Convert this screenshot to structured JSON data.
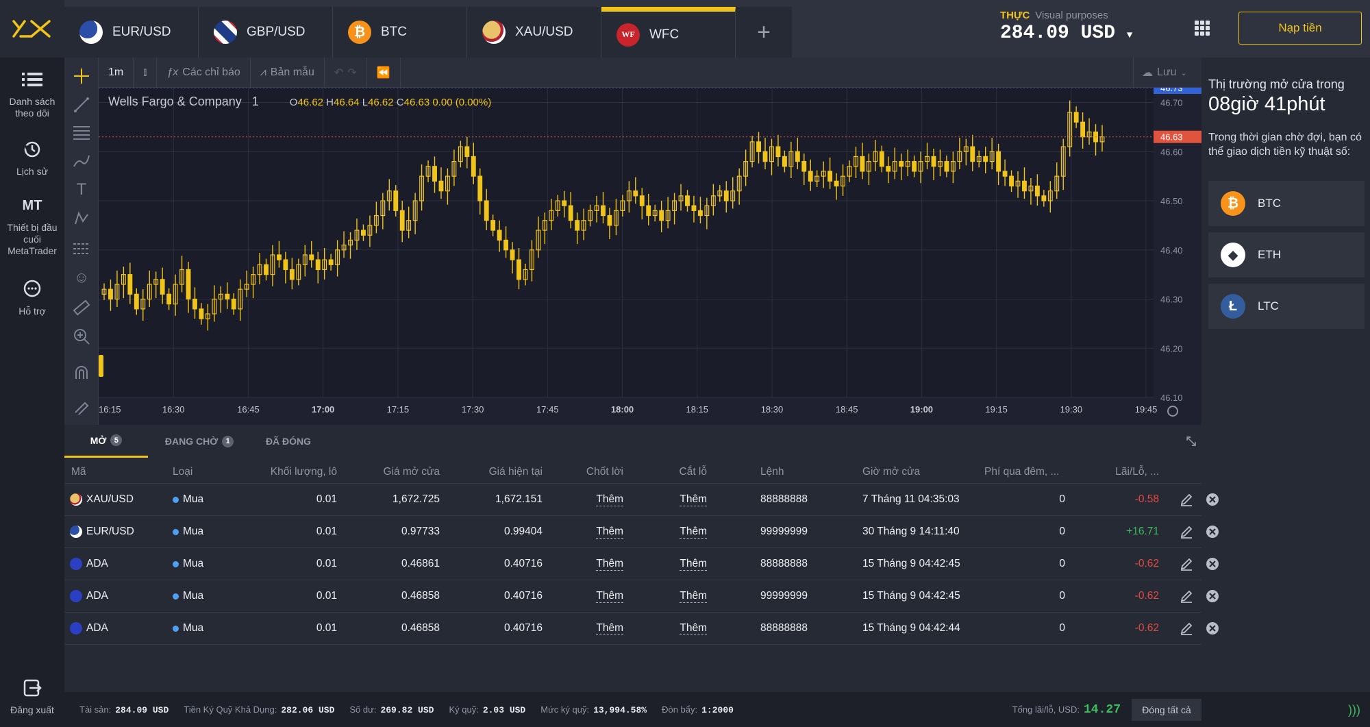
{
  "tabs": [
    {
      "label": "EUR/USD",
      "icon": "eu-us-flag"
    },
    {
      "label": "GBP/USD",
      "icon": "uk-us-flag"
    },
    {
      "label": "BTC",
      "icon": "bitcoin-icon"
    },
    {
      "label": "XAU/USD",
      "icon": "gold-us-flag"
    },
    {
      "label": "WFC",
      "icon": "wf-logo",
      "active": true
    }
  ],
  "account": {
    "mode": "THỰC",
    "mode_note": "Visual purposes",
    "balance": "284.09 USD"
  },
  "deposit_label": "Nạp tiền",
  "nav": [
    {
      "label": "Danh sách theo dõi",
      "icon": "list-icon"
    },
    {
      "label": "Lịch sử",
      "icon": "history-icon"
    },
    {
      "label": "Thiết bị đầu cuối MetaTrader",
      "icon": "mt-icon",
      "icon_text": "MT"
    },
    {
      "label": "Hỗ trợ",
      "icon": "chat-icon"
    },
    {
      "label": "Đăng xuất",
      "icon": "logout-icon"
    }
  ],
  "chart_toolbar": {
    "interval": "1m",
    "indicators": "Các chỉ báo",
    "templates": "Bản mẫu",
    "save": "Lưu"
  },
  "chart_legend": {
    "name": "Wells Fargo & Company",
    "interval": "1",
    "o": "46.62",
    "h": "46.64",
    "l": "46.62",
    "c": "46.63",
    "change": "0.00 (0.00%)"
  },
  "chart_data": {
    "type": "candlestick",
    "y_ticks": [
      "46.70",
      "46.60",
      "46.50",
      "46.40",
      "46.30",
      "46.20",
      "46.10"
    ],
    "ylim": [
      46.1,
      46.73
    ],
    "x_ticks": [
      "16:15",
      "16:30",
      "16:45",
      "17:00",
      "17:15",
      "17:30",
      "17:45",
      "18:00",
      "18:15",
      "18:30",
      "18:45",
      "19:00",
      "19:15",
      "19:30",
      "19:45"
    ],
    "last_high_label": "46.73",
    "last_price_label": "46.63",
    "color": "#f0c419",
    "close_series": [
      46.32,
      46.3,
      46.33,
      46.35,
      46.31,
      46.28,
      46.3,
      46.33,
      46.34,
      46.31,
      46.29,
      46.33,
      46.36,
      46.3,
      46.28,
      46.26,
      46.27,
      46.3,
      46.31,
      46.3,
      46.28,
      46.32,
      46.33,
      46.35,
      46.37,
      46.35,
      46.39,
      46.38,
      46.36,
      46.34,
      46.37,
      46.39,
      46.38,
      46.36,
      46.38,
      46.37,
      46.4,
      46.41,
      46.42,
      46.44,
      46.43,
      46.45,
      46.47,
      46.5,
      46.52,
      46.48,
      46.44,
      46.46,
      46.5,
      46.55,
      46.57,
      46.54,
      46.52,
      46.55,
      46.58,
      46.61,
      46.59,
      46.55,
      46.5,
      46.46,
      46.44,
      46.42,
      46.4,
      46.38,
      46.34,
      46.36,
      46.4,
      46.44,
      46.46,
      46.48,
      46.5,
      46.49,
      46.46,
      46.44,
      46.46,
      46.48,
      46.49,
      46.47,
      46.45,
      46.48,
      46.5,
      46.52,
      46.51,
      46.49,
      46.47,
      46.48,
      46.46,
      46.48,
      46.5,
      46.51,
      46.49,
      46.48,
      46.47,
      46.49,
      46.51,
      46.52,
      46.5,
      46.52,
      46.55,
      46.58,
      46.62,
      46.6,
      46.58,
      46.61,
      46.59,
      46.57,
      46.6,
      46.58,
      46.56,
      46.54,
      46.55,
      46.56,
      46.54,
      46.53,
      46.55,
      46.57,
      46.59,
      46.56,
      46.58,
      46.6,
      46.57,
      46.56,
      46.58,
      46.57,
      46.58,
      46.56,
      46.58,
      46.59,
      46.57,
      46.58,
      46.56,
      46.58,
      46.6,
      46.61,
      46.58,
      46.59,
      46.58,
      46.6,
      46.56,
      46.55,
      46.53,
      46.54,
      46.52,
      46.53,
      46.51,
      46.5,
      46.52,
      46.55,
      46.61,
      46.68,
      46.66,
      46.63,
      46.64,
      46.62,
      46.63
    ]
  },
  "bottom_tabs": [
    {
      "label": "MỞ",
      "count": "5",
      "active": true
    },
    {
      "label": "ĐANG CHỜ",
      "count": "1"
    },
    {
      "label": "ĐÃ ĐÓNG",
      "count": ""
    }
  ],
  "columns": [
    "Mã",
    "Loại",
    "Khối lượng, lô",
    "Giá mở cửa",
    "Giá hiện tại",
    "Chốt lời",
    "Cắt lỗ",
    "Lệnh",
    "Giờ mở cửa",
    "Phí qua đêm, ...",
    "Lãi/Lỗ, ..."
  ],
  "rows": [
    {
      "sym": "XAU/USD",
      "icon": "gold-us-flag",
      "type": "Mua",
      "vol": "0.01",
      "open": "1,672.725",
      "cur": "1,672.151",
      "tp": "Thêm",
      "sl": "Thêm",
      "order": "88888888",
      "time": "7 Tháng 11 04:35:03",
      "swap": "0",
      "pl": "-0.58",
      "pl_sign": "neg"
    },
    {
      "sym": "EUR/USD",
      "icon": "eu-us-flag",
      "type": "Mua",
      "vol": "0.01",
      "open": "0.97733",
      "cur": "0.99404",
      "tp": "Thêm",
      "sl": "Thêm",
      "order": "99999999",
      "time": "30 Tháng 9 14:11:40",
      "swap": "0",
      "pl": "+16.71",
      "pl_sign": "pos"
    },
    {
      "sym": "ADA",
      "icon": "cardano-icon",
      "type": "Mua",
      "vol": "0.01",
      "open": "0.46861",
      "cur": "0.40716",
      "tp": "Thêm",
      "sl": "Thêm",
      "order": "88888888",
      "time": "15 Tháng 9 04:42:45",
      "swap": "0",
      "pl": "-0.62",
      "pl_sign": "neg"
    },
    {
      "sym": "ADA",
      "icon": "cardano-icon",
      "type": "Mua",
      "vol": "0.01",
      "open": "0.46858",
      "cur": "0.40716",
      "tp": "Thêm",
      "sl": "Thêm",
      "order": "99999999",
      "time": "15 Tháng 9 04:42:45",
      "swap": "0",
      "pl": "-0.62",
      "pl_sign": "neg"
    },
    {
      "sym": "ADA",
      "icon": "cardano-icon",
      "type": "Mua",
      "vol": "0.01",
      "open": "0.46858",
      "cur": "0.40716",
      "tp": "Thêm",
      "sl": "Thêm",
      "order": "88888888",
      "time": "15 Tháng 9 04:42:44",
      "swap": "0",
      "pl": "-0.62",
      "pl_sign": "neg"
    }
  ],
  "right_panel": {
    "title": "Thị trường mở cửa trong",
    "countdown": "08giờ 41phút",
    "desc": "Trong thời gian chờ đợi, bạn có thể giao dịch tiền kỹ thuật số:",
    "coins": [
      {
        "label": "BTC",
        "color": "#f7931a",
        "glyph": "₿"
      },
      {
        "label": "ETH",
        "color": "#ffffff",
        "glyph": "◆"
      },
      {
        "label": "LTC",
        "color": "#345d9d",
        "glyph": "Ł"
      }
    ]
  },
  "footer": [
    {
      "label": "Tài sản:",
      "value": "284.09 USD"
    },
    {
      "label": "Tiền Ký Quỹ Khả Dụng:",
      "value": "282.06 USD"
    },
    {
      "label": "Số dư:",
      "value": "269.82 USD"
    },
    {
      "label": "Ký quỹ:",
      "value": "2.03 USD"
    },
    {
      "label": "Mức ký quỹ:",
      "value": "13,994.58%"
    },
    {
      "label": "Đòn bẩy:",
      "value": "1:2000"
    }
  ],
  "total_pl": {
    "label": "Tổng lãi/lỗ, USD:",
    "value": "14.27"
  },
  "close_all": "Đóng tất cả"
}
